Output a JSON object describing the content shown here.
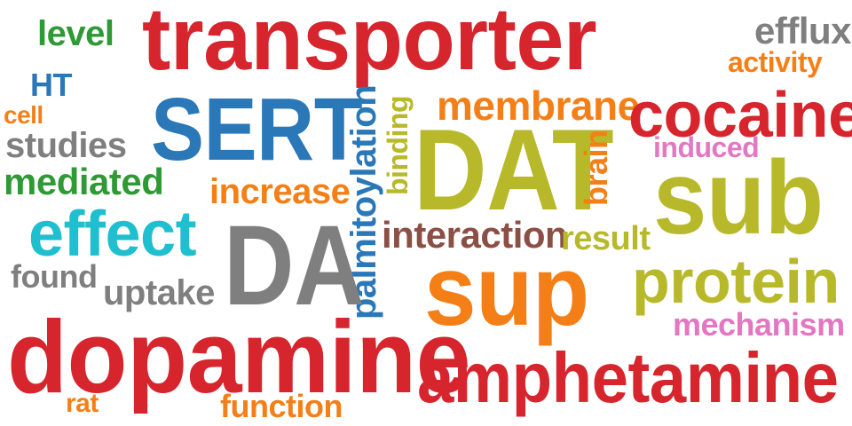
{
  "colors": {
    "red": "#d6252d",
    "blue": "#2b78b8",
    "green": "#2f9a35",
    "orange": "#f57f17",
    "gray": "#7f7f7f",
    "olive": "#b8b92a",
    "cyan": "#1fbfd0",
    "brown": "#8b4f45",
    "pink": "#e377c2"
  },
  "words": {
    "transporter": "transporter",
    "level": "level",
    "efflux": "efflux",
    "activity": "activity",
    "ht": "HT",
    "cell": "cell",
    "studies": "studies",
    "mediated": "mediated",
    "sert": "SERT",
    "palmitoylation": "palmitoylation",
    "binding": "binding",
    "membrane": "membrane",
    "cocaine": "cocaine",
    "induced": "induced",
    "dat": "DAT",
    "brain": "brain",
    "sub": "sub",
    "increase": "increase",
    "effect": "effect",
    "da": "DA",
    "interaction": "interaction",
    "result": "result",
    "found": "found",
    "uptake": "uptake",
    "sup": "sup",
    "protein": "protein",
    "mechanism": "mechanism",
    "dopamine": "dopamine",
    "amphetamine": "amphetamine",
    "rat": "rat",
    "function": "function"
  }
}
